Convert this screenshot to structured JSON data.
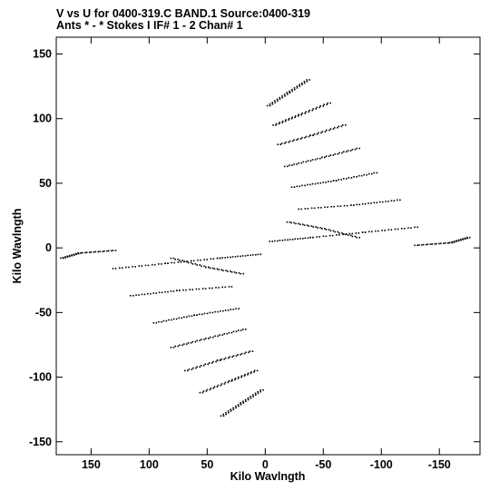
{
  "chart_data": {
    "type": "scatter",
    "title": "V vs U for 0400-319.C BAND.1   Source:0400-319",
    "subtitle": "Ants * - *     Stokes I   IF# 1 - 2   Chan# 1",
    "xlabel": "Kilo Wavlngth",
    "ylabel": "Kilo Wavlngth",
    "xlim": [
      180,
      -185
    ],
    "ylim": [
      -160,
      163
    ],
    "x_ticks": [
      150,
      100,
      50,
      0,
      -50,
      -100,
      -150
    ],
    "y_ticks": [
      150,
      100,
      50,
      0,
      -50,
      -100,
      -150
    ],
    "grid": false,
    "marker": "double-dot",
    "point_color": "#000000",
    "series": [
      {
        "description_points": "uv-coverage tracks (U, V) in kilo-wavelengths; symmetric pairs",
        "tracks": [
          {
            "u": [
              -3,
              -20,
              -37
            ],
            "v": [
              110,
              120,
              130
            ]
          },
          {
            "u": [
              -8,
              -30,
              -55
            ],
            "v": [
              95,
              103,
              112
            ]
          },
          {
            "u": [
              -12,
              -40,
              -68
            ],
            "v": [
              80,
              87,
              95
            ]
          },
          {
            "u": [
              -18,
              -50,
              -80
            ],
            "v": [
              63,
              70,
              77
            ]
          },
          {
            "u": [
              -24,
              -60,
              -95
            ],
            "v": [
              47,
              52,
              58
            ]
          },
          {
            "u": [
              -30,
              -75,
              -115
            ],
            "v": [
              30,
              33,
              37
            ]
          },
          {
            "u": [
              -5,
              -40,
              -85,
              -130
            ],
            "v": [
              5,
              8,
              12,
              16
            ]
          },
          {
            "u": [
              20,
              50,
              80
            ],
            "v": [
              -20,
              -15,
              -8
            ]
          },
          {
            "u": [
              130,
              160,
              175
            ],
            "v": [
              -2,
              -4,
              -8
            ]
          }
        ]
      }
    ]
  }
}
